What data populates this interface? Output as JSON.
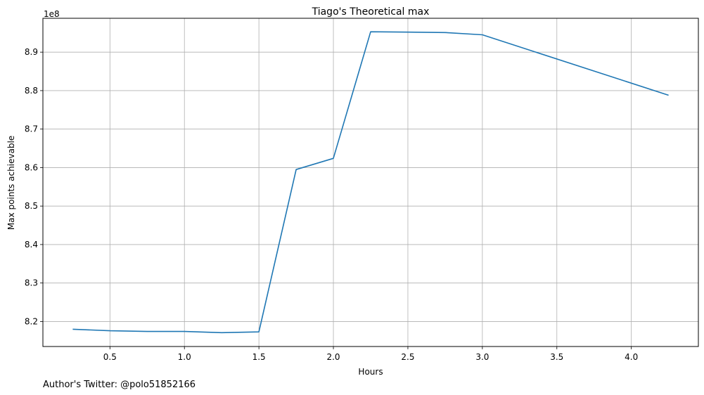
{
  "chart_data": {
    "type": "line",
    "title": "Tiago's Theoretical max",
    "xlabel": "Hours",
    "ylabel": "Max points achievable",
    "y_offset_label": "1e8",
    "x_ticks": [
      "0.5",
      "1.0",
      "1.5",
      "2.0",
      "2.5",
      "3.0",
      "3.5",
      "4.0"
    ],
    "x_tick_values": [
      0.5,
      1.0,
      1.5,
      2.0,
      2.5,
      3.0,
      3.5,
      4.0
    ],
    "y_ticks": [
      "8.2",
      "8.3",
      "8.4",
      "8.5",
      "8.6",
      "8.7",
      "8.8",
      "8.9"
    ],
    "y_tick_values": [
      820000000,
      830000000,
      840000000,
      850000000,
      860000000,
      870000000,
      880000000,
      890000000
    ],
    "xlim": [
      0.05,
      4.45
    ],
    "ylim": [
      813500000,
      898800000
    ],
    "grid": true,
    "series": [
      {
        "color": "#1f77b4",
        "x": [
          0.25,
          0.5,
          0.75,
          1.0,
          1.25,
          1.5,
          1.75,
          2.0,
          2.25,
          2.5,
          2.75,
          3.0,
          4.25
        ],
        "y": [
          818000000,
          817600000,
          817400000,
          817400000,
          817100000,
          817300000,
          859500000,
          862400000,
          895300000,
          895200000,
          895100000,
          894500000,
          878800000
        ]
      }
    ]
  },
  "footer": {
    "note": "Author's Twitter: @polo51852166"
  }
}
